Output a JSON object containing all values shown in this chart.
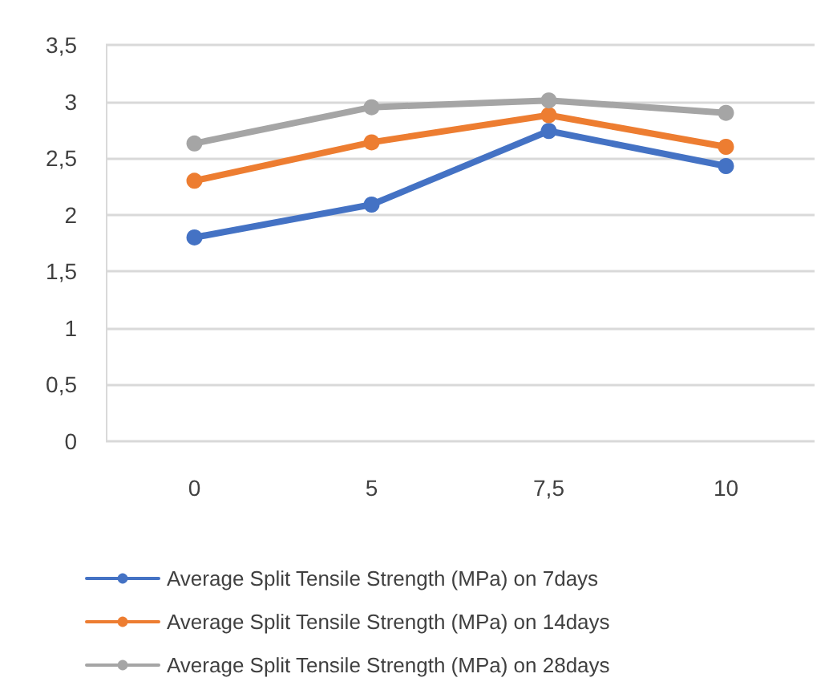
{
  "chart_data": {
    "type": "line",
    "categories": [
      "0",
      "5",
      "7,5",
      "10"
    ],
    "series": [
      {
        "name": "Average Split Tensile Strength (MPa) on 7days",
        "color": "#4472c4",
        "values": [
          1.8,
          2.09,
          2.74,
          2.43
        ]
      },
      {
        "name": "Average Split Tensile Strength (MPa) on 14days",
        "color": "#ed7d31",
        "values": [
          2.3,
          2.64,
          2.88,
          2.6
        ]
      },
      {
        "name": "Average Split Tensile Strength (MPa) on 28days",
        "color": "#a5a5a5",
        "values": [
          2.63,
          2.95,
          3.01,
          2.9
        ]
      }
    ],
    "ylim": [
      0,
      3.5
    ],
    "yticks": [
      0,
      {
        "value": 0.5,
        "label": "0,5"
      },
      1,
      {
        "value": 1.5,
        "label": "1,5"
      },
      2,
      {
        "value": 2.5,
        "label": "2,5"
      },
      3,
      {
        "value": 3.5,
        "label": "3,5"
      }
    ],
    "grid": "y",
    "legend": "bottom",
    "marker": "circle",
    "line_style": "solid"
  }
}
